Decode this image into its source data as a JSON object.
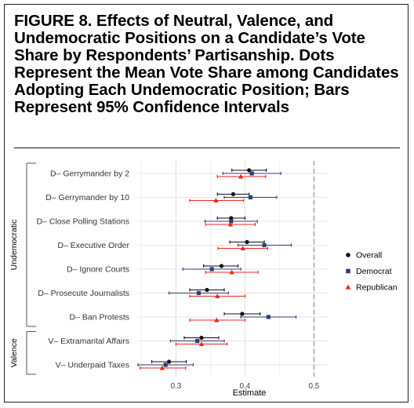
{
  "figure": {
    "title": "FIGURE 8.   Effects of Neutral, Valence, and Undemocratic Positions on a Candidate’s Vote Share by Respondents’ Partisanship. Dots Represent the Mean Vote Share among Candidates Adopting Each Undemocratic Position; Bars Represent 95% Confidence Intervals"
  },
  "chart_data": {
    "type": "scatter",
    "orientation": "horizontal",
    "xlabel": "Estimate",
    "ylabel": "",
    "xlim": [
      0.245,
      0.52
    ],
    "xticks": [
      0.3,
      0.4,
      0.5
    ],
    "xtick_labels": [
      "0.3",
      "0.4",
      "0.5"
    ],
    "reference_line": 0.5,
    "grid": true,
    "legend_position": "right",
    "groups": [
      {
        "name": "Undemocratic",
        "categories": [
          "D– Gerrymander by 2",
          "D– Gerrymander by 10",
          "D– Close Polling Stations",
          "D– Executive Order",
          "D– Ignore Courts",
          "D– Prosecute Journalists",
          "D– Ban Protests"
        ]
      },
      {
        "name": "Valence",
        "categories": [
          "V– Extramarital Affairs",
          "V– Underpaid Taxes"
        ]
      }
    ],
    "categories": [
      "D– Gerrymander by 2",
      "D– Gerrymander by 10",
      "D– Close Polling Stations",
      "D– Executive Order",
      "D– Ignore Courts",
      "D– Prosecute Journalists",
      "D– Ban Protests",
      "V– Extramarital Affairs",
      "V– Underpaid Taxes"
    ],
    "series": [
      {
        "name": "Overall",
        "color": "#111111",
        "marker": "circle",
        "values": [
          0.406,
          0.383,
          0.38,
          0.403,
          0.366,
          0.345,
          0.396,
          0.337,
          0.29
        ],
        "ci_low": [
          0.381,
          0.36,
          0.36,
          0.378,
          0.34,
          0.32,
          0.37,
          0.312,
          0.265
        ],
        "ci_high": [
          0.431,
          0.406,
          0.4,
          0.428,
          0.39,
          0.37,
          0.422,
          0.362,
          0.315
        ]
      },
      {
        "name": "Democrat",
        "color": "#2b3f75",
        "marker": "square",
        "values": [
          0.41,
          0.408,
          0.38,
          0.428,
          0.352,
          0.333,
          0.434,
          0.331,
          0.285
        ],
        "ci_low": [
          0.368,
          0.37,
          0.342,
          0.39,
          0.31,
          0.29,
          0.394,
          0.292,
          0.245
        ],
        "ci_high": [
          0.452,
          0.446,
          0.418,
          0.467,
          0.394,
          0.376,
          0.474,
          0.37,
          0.325
        ]
      },
      {
        "name": "Republican",
        "color": "#e8261c",
        "marker": "triangle",
        "values": [
          0.394,
          0.358,
          0.379,
          0.397,
          0.381,
          0.36,
          0.359,
          0.337,
          0.28
        ],
        "ci_low": [
          0.36,
          0.32,
          0.343,
          0.361,
          0.343,
          0.32,
          0.32,
          0.3,
          0.248
        ],
        "ci_high": [
          0.43,
          0.398,
          0.415,
          0.433,
          0.419,
          0.4,
          0.4,
          0.374,
          0.314
        ]
      }
    ]
  }
}
